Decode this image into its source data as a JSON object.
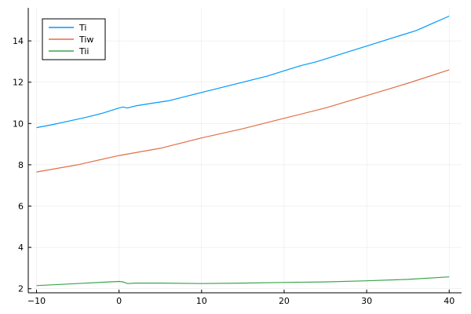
{
  "chart_data": {
    "type": "line",
    "title": "",
    "xlabel": "",
    "ylabel": "",
    "xlim": [
      -11,
      41.5
    ],
    "ylim": [
      1.8,
      15.6
    ],
    "xticks": [
      -10,
      0,
      10,
      20,
      30,
      40
    ],
    "yticks": [
      2,
      4,
      6,
      8,
      10,
      12,
      14
    ],
    "xtick_labels": [
      "−10",
      "0",
      "10",
      "20",
      "30",
      "40"
    ],
    "ytick_labels": [
      "2",
      "4",
      "6",
      "8",
      "10",
      "12",
      "14"
    ],
    "grid": true,
    "legend_position": "top-left",
    "series": [
      {
        "name": "Ti",
        "color": "#009AFA",
        "points": [
          [
            -10,
            9.8
          ],
          [
            -8,
            9.95
          ],
          [
            -6,
            10.12
          ],
          [
            -4,
            10.3
          ],
          [
            -2,
            10.5
          ],
          [
            0,
            10.75
          ],
          [
            0.5,
            10.8
          ],
          [
            1,
            10.75
          ],
          [
            2,
            10.85
          ],
          [
            4,
            10.98
          ],
          [
            6,
            11.1
          ],
          [
            8,
            11.3
          ],
          [
            10,
            11.5
          ],
          [
            12,
            11.7
          ],
          [
            14,
            11.9
          ],
          [
            16,
            12.1
          ],
          [
            18,
            12.3
          ],
          [
            20,
            12.55
          ],
          [
            22,
            12.8
          ],
          [
            24,
            13.0
          ],
          [
            26,
            13.25
          ],
          [
            28,
            13.5
          ],
          [
            30,
            13.75
          ],
          [
            32,
            14.0
          ],
          [
            34,
            14.25
          ],
          [
            36,
            14.5
          ],
          [
            38,
            14.85
          ],
          [
            40,
            15.2
          ]
        ]
      },
      {
        "name": "Tiw",
        "color": "#E26F46",
        "points": [
          [
            -10,
            7.65
          ],
          [
            -5,
            8.0
          ],
          [
            0,
            8.45
          ],
          [
            5,
            8.8
          ],
          [
            10,
            9.3
          ],
          [
            15,
            9.75
          ],
          [
            20,
            10.25
          ],
          [
            25,
            10.75
          ],
          [
            30,
            11.35
          ],
          [
            35,
            11.95
          ],
          [
            40,
            12.6
          ]
        ]
      },
      {
        "name": "Tii",
        "color": "#3DA44D",
        "points": [
          [
            -10,
            2.15
          ],
          [
            -5,
            2.25
          ],
          [
            0,
            2.35
          ],
          [
            0.5,
            2.33
          ],
          [
            1,
            2.25
          ],
          [
            2,
            2.27
          ],
          [
            5,
            2.27
          ],
          [
            10,
            2.25
          ],
          [
            15,
            2.27
          ],
          [
            20,
            2.3
          ],
          [
            25,
            2.33
          ],
          [
            30,
            2.38
          ],
          [
            35,
            2.45
          ],
          [
            40,
            2.57
          ]
        ]
      }
    ]
  }
}
